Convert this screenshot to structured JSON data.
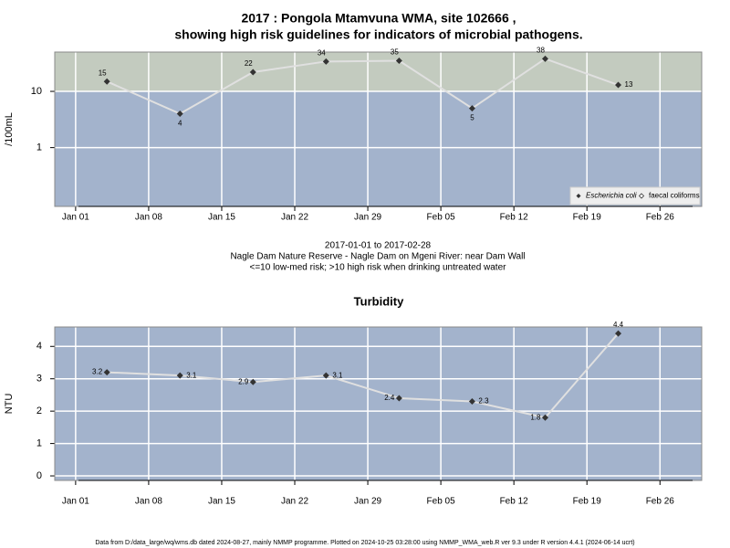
{
  "footer": "Data from D:/data_large/wq/wms.db dated 2024-08-27, mainly NMMP programme. Plotted on 2024-10-25 03:28:00 using NMMP_WMA_web.R ver 9.3 under R version 4.4.1 (2024-06-14 ucrt)",
  "chart_data": [
    {
      "type": "line",
      "title": [
        "2017 : Pongola Mtamvuna WMA, site 102666 ,",
        "showing high risk guidelines for indicators of microbial pathogens."
      ],
      "subtitle": [
        "2017-01-01 to 2017-02-28",
        "Nagle Dam Nature Reserve - Nagle Dam on Mgeni River: near Dam Wall",
        "<=10 low-med risk; >10 high risk when drinking untreated water"
      ],
      "ylabel": "/100mL",
      "x": [
        "Jan 04",
        "Jan 11",
        "Jan 18",
        "Jan 25",
        "Feb 01",
        "Feb 08",
        "Feb 15",
        "Feb 22"
      ],
      "series": [
        {
          "values": [
            15,
            4,
            22,
            34,
            35,
            5,
            38,
            13
          ],
          "color": "#333333",
          "line_color": "#e0e0e0"
        }
      ],
      "xlim": [
        "Dec 30",
        "Mar 02"
      ],
      "xticks": [
        "Jan 01",
        "Jan 08",
        "Jan 15",
        "Jan 22",
        "Jan 29",
        "Feb 05",
        "Feb 12",
        "Feb 19",
        "Feb 26"
      ],
      "ylim": [
        0.09,
        50
      ],
      "yticks": [
        1,
        10
      ],
      "log_y": true,
      "grid": true,
      "threshold": 10,
      "above_color": "#c3cbbf",
      "below_color": "#a3b3cc",
      "legend": {
        "position": "bottom-right",
        "entries": [
          {
            "name": "Escherichia coli",
            "marker": "filled"
          },
          {
            "name": "faecal coliforms",
            "marker": "open"
          }
        ]
      }
    },
    {
      "type": "line",
      "title": [
        "Turbidity"
      ],
      "ylabel": "NTU",
      "x": [
        "Jan 04",
        "Jan 11",
        "Jan 18",
        "Jan 25",
        "Feb 01",
        "Feb 08",
        "Feb 15",
        "Feb 22"
      ],
      "series": [
        {
          "values": [
            3.2,
            3.1,
            2.9,
            3.1,
            2.4,
            2.3,
            1.8,
            4.4
          ],
          "color": "#333333",
          "line_color": "#e0e0e0"
        }
      ],
      "xlim": [
        "Dec 30",
        "Mar 02"
      ],
      "xticks": [
        "Jan 01",
        "Jan 08",
        "Jan 15",
        "Jan 22",
        "Jan 29",
        "Feb 05",
        "Feb 12",
        "Feb 19",
        "Feb 26"
      ],
      "ylim": [
        -0.14,
        4.6
      ],
      "yticks": [
        0,
        1,
        2,
        3,
        4
      ],
      "log_y": false,
      "grid": true,
      "below_color": "#a3b3cc"
    }
  ]
}
